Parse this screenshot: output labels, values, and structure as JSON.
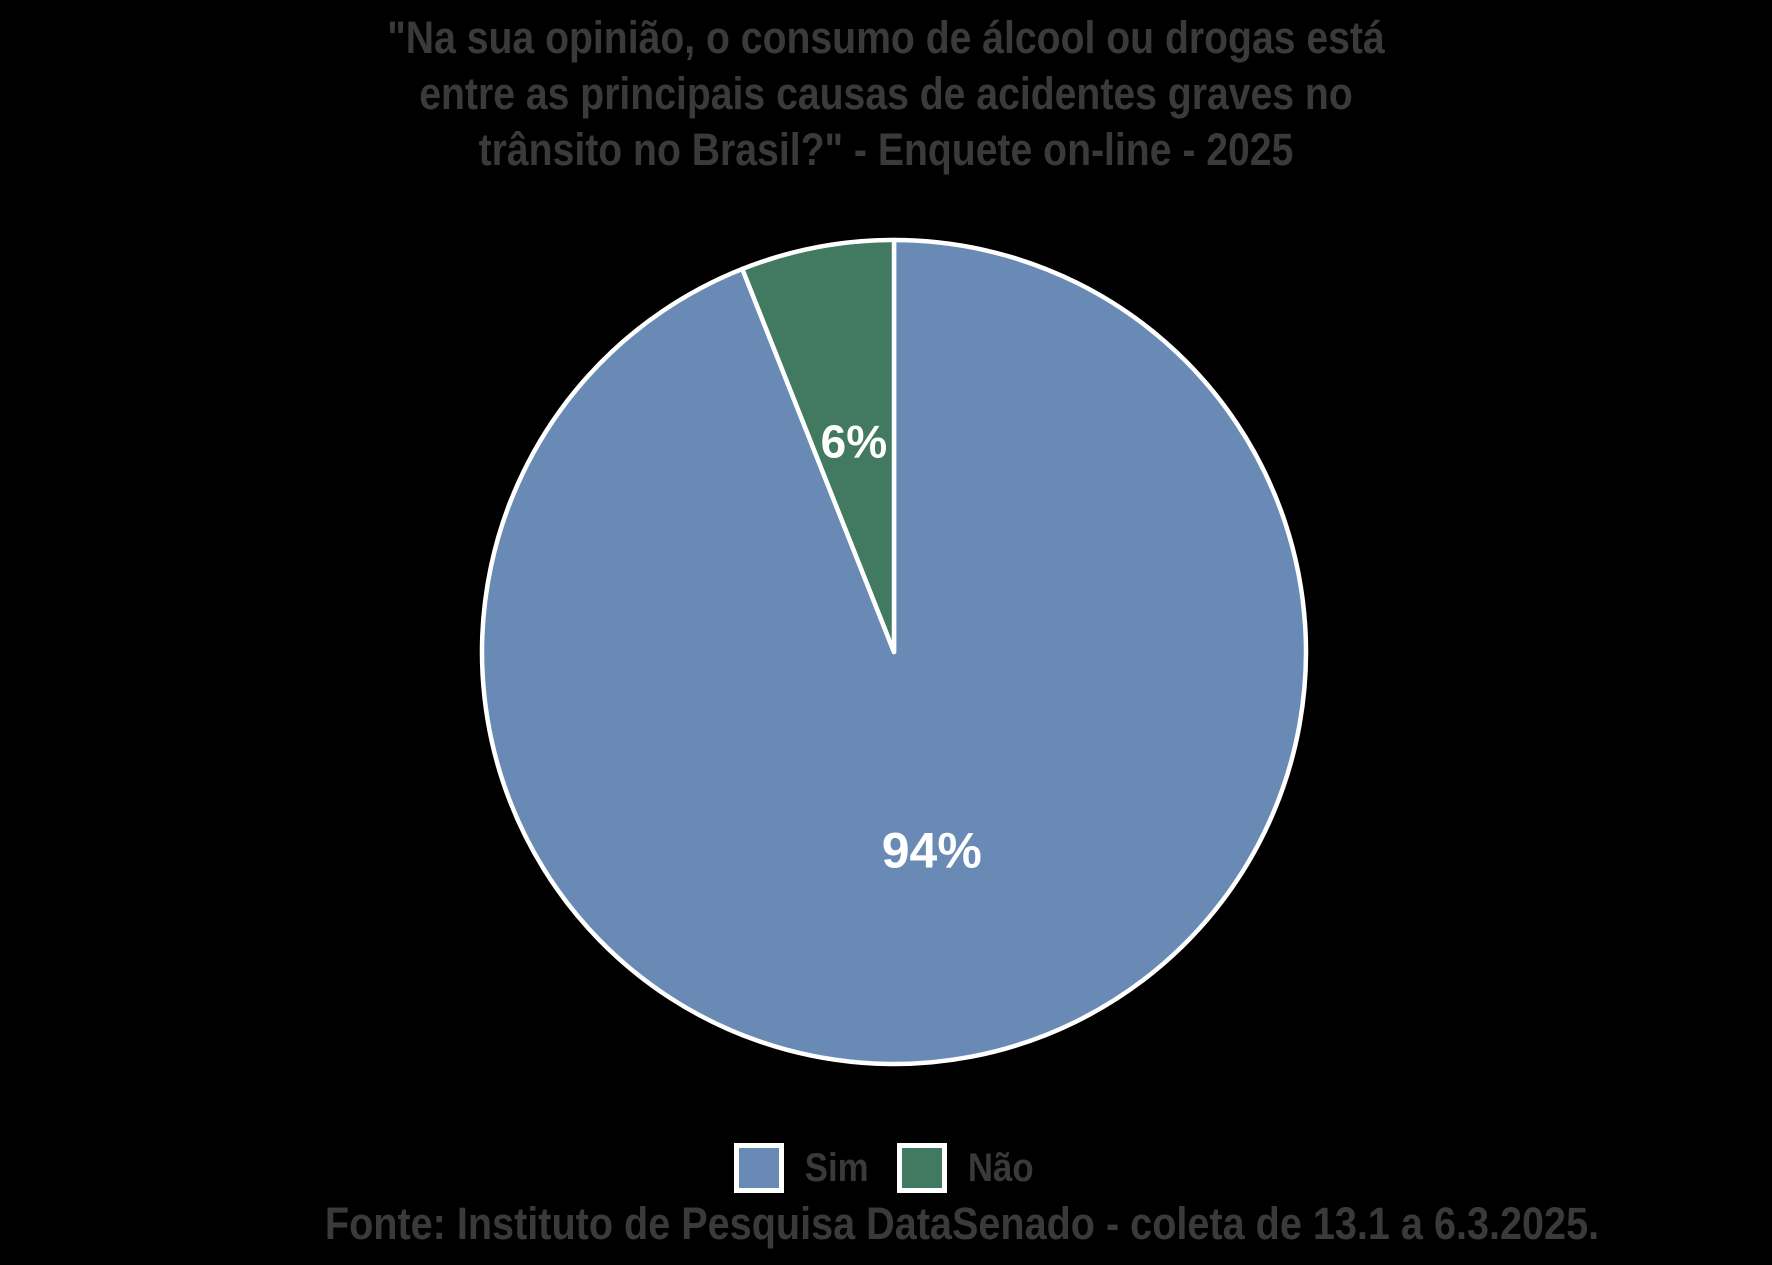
{
  "title": "\"Na sua opinião, o consumo de álcool ou drogas está\nentre as principais causas de acidentes graves no\ntrânsito no Brasil?\" - Enquete on-line - 2025",
  "chart_data": {
    "type": "pie",
    "title": "\"Na sua opinião, o consumo de álcool ou drogas está entre as principais causas de acidentes graves no trânsito no Brasil?\" - Enquete on-line - 2025",
    "categories": [
      "Sim",
      "Não"
    ],
    "values": [
      94,
      6
    ],
    "value_labels": [
      "94%",
      "6%"
    ],
    "colors": [
      "#6A8AB6",
      "#417A60"
    ],
    "slice_border_color": "#FFFFFF",
    "label_text_color": "#FFFFFF",
    "start_angle_deg": 0,
    "direction": "clockwise",
    "legend_position": "bottom",
    "source": "Fonte: Instituto de Pesquisa DataSenado - coleta de 13.1 a 6.3.2025."
  },
  "legend": {
    "items": [
      {
        "label": "Sim",
        "color": "#6A8AB6"
      },
      {
        "label": "Não",
        "color": "#417A60"
      }
    ]
  },
  "footer": {
    "source": "Fonte: Instituto de Pesquisa DataSenado - coleta de 13.1 a 6.3.2025."
  },
  "colors": {
    "background": "#000000",
    "title_text": "#3A3A3A",
    "legend_text": "#3A3A3A",
    "source_text": "#3A3A3A"
  }
}
